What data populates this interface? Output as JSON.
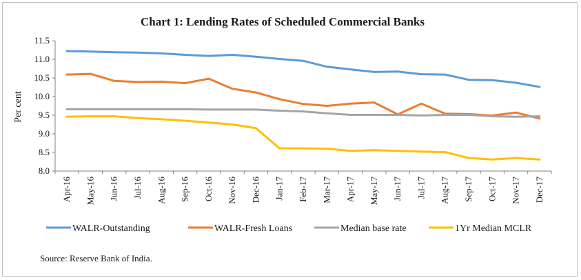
{
  "chart_data": {
    "type": "line",
    "title": "Chart 1: Lending Rates of Scheduled Commercial Banks",
    "ylabel": "Per cent",
    "xlabel": "",
    "ylim": [
      8.0,
      11.5
    ],
    "yticks": [
      "11.5",
      "11.0",
      "10.5",
      "10.0",
      "9.5",
      "9.0",
      "8.5",
      "8.0"
    ],
    "ytick_values": [
      11.5,
      11.0,
      10.5,
      10.0,
      9.5,
      9.0,
      8.5,
      8.0
    ],
    "grid": false,
    "legend_position": "bottom",
    "categories": [
      "Apr-16",
      "May-16",
      "Jun-16",
      "Jul-16",
      "Aug-16",
      "Sep-16",
      "Oct-16",
      "Nov-16",
      "Dec-16",
      "Jan-17",
      "Feb-17",
      "Mar-17",
      "Apr-17",
      "May-17",
      "Jun-17",
      "Jul-17",
      "Aug-17",
      "Sep-17",
      "Oct-17",
      "Nov-17",
      "Dec-17"
    ],
    "series": [
      {
        "name": "WALR-Outstanding",
        "color": "#5b9bd5",
        "values": [
          11.22,
          11.21,
          11.19,
          11.18,
          11.16,
          11.12,
          11.09,
          11.12,
          11.07,
          11.01,
          10.96,
          10.8,
          10.73,
          10.66,
          10.67,
          10.6,
          10.59,
          10.45,
          10.44,
          10.37,
          10.26
        ]
      },
      {
        "name": "WALR-Fresh Loans",
        "color": "#ed7d31",
        "values": [
          10.59,
          10.61,
          10.42,
          10.39,
          10.4,
          10.36,
          10.48,
          10.21,
          10.11,
          9.93,
          9.8,
          9.75,
          9.81,
          9.84,
          9.52,
          9.81,
          9.54,
          9.53,
          9.49,
          9.57,
          9.41
        ]
      },
      {
        "name": "Median base rate",
        "color": "#a5a5a5",
        "values": [
          9.66,
          9.66,
          9.66,
          9.66,
          9.66,
          9.66,
          9.65,
          9.65,
          9.65,
          9.62,
          9.6,
          9.55,
          9.51,
          9.51,
          9.51,
          9.49,
          9.51,
          9.51,
          9.47,
          9.46,
          9.47
        ]
      },
      {
        "name": "1Yr Median MCLR",
        "color": "#ffc000",
        "values": [
          9.46,
          9.47,
          9.47,
          9.42,
          9.39,
          9.35,
          9.3,
          9.25,
          9.15,
          8.61,
          8.61,
          8.6,
          8.54,
          8.56,
          8.54,
          8.52,
          8.51,
          8.35,
          8.31,
          8.35,
          8.31
        ]
      }
    ]
  },
  "source": "Source: Reserve Bank of India."
}
